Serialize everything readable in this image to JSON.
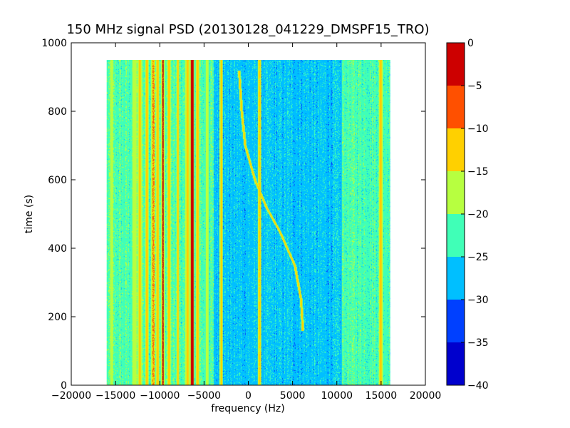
{
  "chart_data": {
    "type": "heatmap",
    "title": "150 MHz signal PSD (20130128_041229_DMSPF15_TRO)",
    "xlabel": "frequency (Hz)",
    "ylabel": "time (s)",
    "xlim": [
      -20000,
      20000
    ],
    "ylim": [
      0,
      1000
    ],
    "xticks": [
      -20000,
      -15000,
      -10000,
      -5000,
      0,
      5000,
      10000,
      15000,
      20000
    ],
    "xtick_labels": [
      "−20000",
      "−15000",
      "−10000",
      "−5000",
      "0",
      "5000",
      "10000",
      "15000",
      "20000"
    ],
    "yticks": [
      0,
      200,
      400,
      600,
      800,
      1000
    ],
    "ytick_labels": [
      "0",
      "200",
      "400",
      "600",
      "800",
      "1000"
    ],
    "data_extent": {
      "freq": [
        -16000,
        16000
      ],
      "time": [
        0,
        950
      ]
    },
    "colormap": "jet",
    "colorbar": {
      "min": -40,
      "max": 0,
      "ticks": [
        0,
        -5,
        -10,
        -15,
        -20,
        -25,
        -30,
        -35,
        -40
      ],
      "tick_labels": [
        "0",
        "−5",
        "−10",
        "−15",
        "−20",
        "−25",
        "−30",
        "−35",
        "−40"
      ],
      "levels": [
        {
          "range": [
            -40,
            -35
          ],
          "color": "#0000cd"
        },
        {
          "range": [
            -35,
            -30
          ],
          "color": "#0040ff"
        },
        {
          "range": [
            -30,
            -25
          ],
          "color": "#00bfff"
        },
        {
          "range": [
            -25,
            -20
          ],
          "color": "#40ffb7"
        },
        {
          "range": [
            -20,
            -15
          ],
          "color": "#b7ff40"
        },
        {
          "range": [
            -15,
            -10
          ],
          "color": "#ffd000"
        },
        {
          "range": [
            -10,
            -5
          ],
          "color": "#ff5000"
        },
        {
          "range": [
            -5,
            0
          ],
          "color": "#cd0000"
        }
      ]
    },
    "background_level": -22,
    "bands": [
      {
        "freq": [
          -16000,
          1300
        ],
        "time": [
          0,
          950
        ],
        "level": -22
      },
      {
        "freq": [
          -4000,
          1300
        ],
        "time": [
          0,
          950
        ],
        "level": -27
      },
      {
        "freq": [
          1300,
          10500
        ],
        "time": [
          0,
          950
        ],
        "level": -27
      },
      {
        "freq": [
          10500,
          16000
        ],
        "time": [
          0,
          950
        ],
        "level": -22
      }
    ],
    "lines": [
      {
        "freq": -15500,
        "level": -18,
        "halfwidth": 80
      },
      {
        "freq": -12900,
        "level": -18,
        "halfwidth": 100
      },
      {
        "freq": -12300,
        "level": -12,
        "halfwidth": 120
      },
      {
        "freq": -11500,
        "level": -12,
        "halfwidth": 100
      },
      {
        "freq": -10800,
        "level": -10,
        "halfwidth": 120
      },
      {
        "freq": -10300,
        "level": -12,
        "halfwidth": 90
      },
      {
        "freq": -9700,
        "level": -4,
        "halfwidth": 100
      },
      {
        "freq": -9000,
        "level": -12,
        "halfwidth": 90
      },
      {
        "freq": -8000,
        "level": -12,
        "halfwidth": 90
      },
      {
        "freq": -6900,
        "level": -12,
        "halfwidth": 120
      },
      {
        "freq": -6400,
        "level": -2,
        "halfwidth": 130
      },
      {
        "freq": -5800,
        "level": -12,
        "halfwidth": 100
      },
      {
        "freq": -4700,
        "level": -18,
        "halfwidth": 80
      },
      {
        "freq": -3100,
        "level": -13,
        "halfwidth": 90
      },
      {
        "freq": 1200,
        "level": -14,
        "halfwidth": 90
      },
      {
        "freq": 14900,
        "level": -12,
        "halfwidth": 120
      }
    ],
    "drift_track": {
      "level": -12,
      "points": [
        {
          "t": 160,
          "f": 6100
        },
        {
          "t": 250,
          "f": 5900
        },
        {
          "t": 350,
          "f": 5200
        },
        {
          "t": 450,
          "f": 3500
        },
        {
          "t": 520,
          "f": 2000
        },
        {
          "t": 600,
          "f": 700
        },
        {
          "t": 700,
          "f": -400
        },
        {
          "t": 800,
          "f": -800
        },
        {
          "t": 920,
          "f": -1100
        }
      ]
    }
  }
}
